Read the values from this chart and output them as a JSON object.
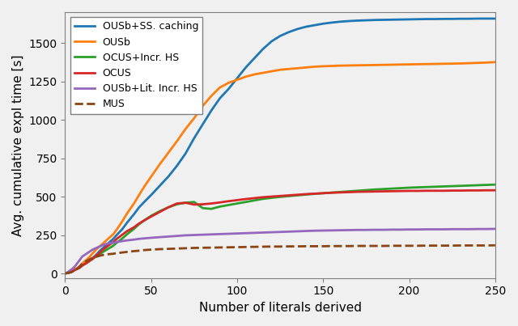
{
  "title": "",
  "xlabel": "Number of literals derived",
  "ylabel": "Avg. cumulative expl time [s]",
  "xlim": [
    0,
    250
  ],
  "ylim": [
    -30,
    1700
  ],
  "yticks": [
    0,
    250,
    500,
    750,
    1000,
    1250,
    1500
  ],
  "xticks": [
    0,
    50,
    100,
    150,
    200,
    250
  ],
  "series": [
    {
      "label": "OUSb+SS. caching",
      "color": "#1f77b4",
      "linestyle": "-",
      "linewidth": 2.0,
      "x": [
        0,
        1,
        2,
        3,
        4,
        5,
        6,
        7,
        8,
        9,
        10,
        12,
        14,
        16,
        18,
        20,
        22,
        25,
        28,
        30,
        33,
        36,
        40,
        43,
        46,
        50,
        55,
        60,
        65,
        70,
        75,
        80,
        85,
        90,
        95,
        100,
        105,
        110,
        115,
        120,
        125,
        130,
        135,
        140,
        145,
        150,
        155,
        160,
        165,
        170,
        175,
        180,
        185,
        190,
        195,
        200,
        205,
        210,
        215,
        220,
        225,
        230,
        235,
        240,
        245,
        250
      ],
      "y": [
        0,
        2,
        5,
        8,
        12,
        18,
        25,
        30,
        35,
        42,
        52,
        65,
        80,
        100,
        120,
        145,
        165,
        195,
        225,
        250,
        285,
        330,
        385,
        430,
        465,
        510,
        570,
        630,
        700,
        780,
        880,
        970,
        1060,
        1140,
        1200,
        1270,
        1340,
        1400,
        1460,
        1510,
        1545,
        1570,
        1590,
        1605,
        1615,
        1625,
        1632,
        1638,
        1642,
        1645,
        1647,
        1649,
        1650,
        1651,
        1652,
        1653,
        1654,
        1655,
        1655,
        1656,
        1656,
        1657,
        1657,
        1658,
        1658,
        1658
      ]
    },
    {
      "label": "OUSb",
      "color": "#ff7f0e",
      "linestyle": "-",
      "linewidth": 2.0,
      "x": [
        0,
        1,
        2,
        3,
        4,
        5,
        6,
        7,
        8,
        9,
        10,
        12,
        14,
        16,
        18,
        20,
        22,
        25,
        28,
        30,
        33,
        36,
        40,
        43,
        46,
        50,
        55,
        60,
        65,
        70,
        75,
        80,
        85,
        90,
        95,
        100,
        105,
        110,
        115,
        120,
        125,
        130,
        135,
        140,
        145,
        150,
        155,
        160,
        165,
        170,
        175,
        180,
        185,
        190,
        195,
        200,
        205,
        210,
        215,
        220,
        225,
        230,
        235,
        240,
        245,
        250
      ],
      "y": [
        0,
        2,
        5,
        8,
        13,
        20,
        28,
        35,
        42,
        52,
        65,
        85,
        105,
        130,
        155,
        175,
        195,
        225,
        255,
        285,
        335,
        390,
        455,
        510,
        565,
        630,
        710,
        785,
        860,
        940,
        1010,
        1090,
        1155,
        1210,
        1240,
        1260,
        1280,
        1295,
        1305,
        1315,
        1325,
        1330,
        1335,
        1340,
        1345,
        1348,
        1350,
        1352,
        1353,
        1354,
        1355,
        1356,
        1357,
        1358,
        1359,
        1360,
        1361,
        1362,
        1363,
        1364,
        1365,
        1366,
        1368,
        1370,
        1372,
        1375
      ]
    },
    {
      "label": "OCUS+Incr. HS",
      "color": "#2ca02c",
      "linestyle": "-",
      "linewidth": 2.0,
      "x": [
        0,
        1,
        2,
        3,
        4,
        5,
        6,
        7,
        8,
        9,
        10,
        12,
        14,
        16,
        18,
        20,
        22,
        25,
        28,
        30,
        33,
        36,
        40,
        43,
        46,
        50,
        55,
        60,
        65,
        70,
        75,
        80,
        85,
        90,
        95,
        100,
        105,
        110,
        115,
        120,
        125,
        130,
        135,
        140,
        145,
        150,
        155,
        160,
        165,
        170,
        175,
        180,
        185,
        190,
        195,
        200,
        205,
        210,
        215,
        220,
        225,
        230,
        235,
        240,
        245,
        250
      ],
      "y": [
        0,
        2,
        5,
        8,
        12,
        18,
        25,
        30,
        35,
        42,
        52,
        65,
        80,
        95,
        110,
        125,
        140,
        160,
        180,
        200,
        225,
        255,
        290,
        320,
        345,
        375,
        405,
        430,
        450,
        460,
        465,
        425,
        420,
        435,
        445,
        455,
        465,
        475,
        485,
        492,
        498,
        503,
        508,
        513,
        518,
        522,
        526,
        530,
        534,
        538,
        542,
        546,
        549,
        552,
        555,
        558,
        560,
        562,
        564,
        566,
        568,
        570,
        572,
        574,
        576,
        578
      ]
    },
    {
      "label": "OCUS",
      "color": "#d62728",
      "linestyle": "-",
      "linewidth": 2.0,
      "x": [
        0,
        1,
        2,
        3,
        4,
        5,
        6,
        7,
        8,
        9,
        10,
        12,
        14,
        16,
        18,
        20,
        22,
        25,
        28,
        30,
        33,
        36,
        40,
        43,
        46,
        50,
        55,
        60,
        65,
        70,
        75,
        80,
        85,
        90,
        95,
        100,
        105,
        110,
        115,
        120,
        125,
        130,
        135,
        140,
        145,
        150,
        155,
        160,
        165,
        170,
        175,
        180,
        185,
        190,
        195,
        200,
        205,
        210,
        215,
        220,
        225,
        230,
        235,
        240,
        245,
        250
      ],
      "y": [
        0,
        2,
        5,
        8,
        12,
        18,
        25,
        30,
        35,
        42,
        52,
        65,
        80,
        95,
        115,
        135,
        155,
        180,
        205,
        225,
        250,
        275,
        300,
        325,
        345,
        370,
        400,
        430,
        455,
        460,
        448,
        450,
        455,
        462,
        470,
        477,
        484,
        490,
        496,
        500,
        504,
        508,
        512,
        516,
        519,
        522,
        525,
        527,
        529,
        531,
        532,
        533,
        534,
        535,
        536,
        537,
        537,
        538,
        538,
        538,
        539,
        539,
        540,
        540,
        541,
        541
      ]
    },
    {
      "label": "OUSb+Lit. Incr. HS",
      "color": "#9467bd",
      "linestyle": "-",
      "linewidth": 2.0,
      "x": [
        0,
        1,
        2,
        3,
        4,
        5,
        6,
        7,
        8,
        9,
        10,
        12,
        14,
        16,
        18,
        20,
        22,
        25,
        28,
        30,
        33,
        36,
        40,
        43,
        46,
        50,
        55,
        60,
        65,
        70,
        75,
        80,
        85,
        90,
        95,
        100,
        105,
        110,
        115,
        120,
        125,
        130,
        135,
        140,
        145,
        150,
        155,
        160,
        165,
        170,
        175,
        180,
        185,
        190,
        195,
        200,
        205,
        210,
        215,
        220,
        225,
        230,
        235,
        240,
        245,
        250
      ],
      "y": [
        0,
        5,
        12,
        20,
        28,
        38,
        50,
        65,
        80,
        95,
        110,
        125,
        140,
        155,
        165,
        175,
        185,
        195,
        200,
        205,
        210,
        215,
        220,
        225,
        228,
        232,
        236,
        240,
        244,
        248,
        250,
        252,
        254,
        256,
        258,
        260,
        262,
        264,
        266,
        268,
        270,
        272,
        274,
        276,
        278,
        279,
        280,
        281,
        282,
        283,
        283,
        284,
        284,
        285,
        285,
        286,
        286,
        287,
        287,
        287,
        288,
        288,
        288,
        289,
        289,
        290
      ]
    },
    {
      "label": "MUS",
      "color": "#8B4513",
      "linestyle": "--",
      "linewidth": 2.0,
      "x": [
        0,
        1,
        2,
        3,
        4,
        5,
        6,
        7,
        8,
        9,
        10,
        12,
        14,
        16,
        18,
        20,
        22,
        25,
        28,
        30,
        33,
        36,
        40,
        43,
        46,
        50,
        55,
        60,
        65,
        70,
        75,
        80,
        85,
        90,
        95,
        100,
        105,
        110,
        115,
        120,
        125,
        130,
        135,
        140,
        145,
        150,
        155,
        160,
        165,
        170,
        175,
        180,
        185,
        190,
        195,
        200,
        205,
        210,
        215,
        220,
        225,
        230,
        235,
        240,
        245,
        250
      ],
      "y": [
        0,
        2,
        4,
        6,
        10,
        16,
        22,
        30,
        40,
        52,
        65,
        78,
        90,
        100,
        108,
        115,
        120,
        125,
        128,
        132,
        136,
        140,
        145,
        148,
        152,
        155,
        158,
        160,
        162,
        164,
        166,
        167,
        168,
        169,
        170,
        171,
        172,
        173,
        174,
        175,
        175,
        176,
        176,
        177,
        177,
        177,
        178,
        178,
        178,
        179,
        179,
        179,
        179,
        180,
        180,
        180,
        180,
        181,
        181,
        181,
        181,
        182,
        182,
        182,
        182,
        183
      ]
    }
  ],
  "legend_loc": "upper left",
  "bg_color": "#f0f0f0"
}
